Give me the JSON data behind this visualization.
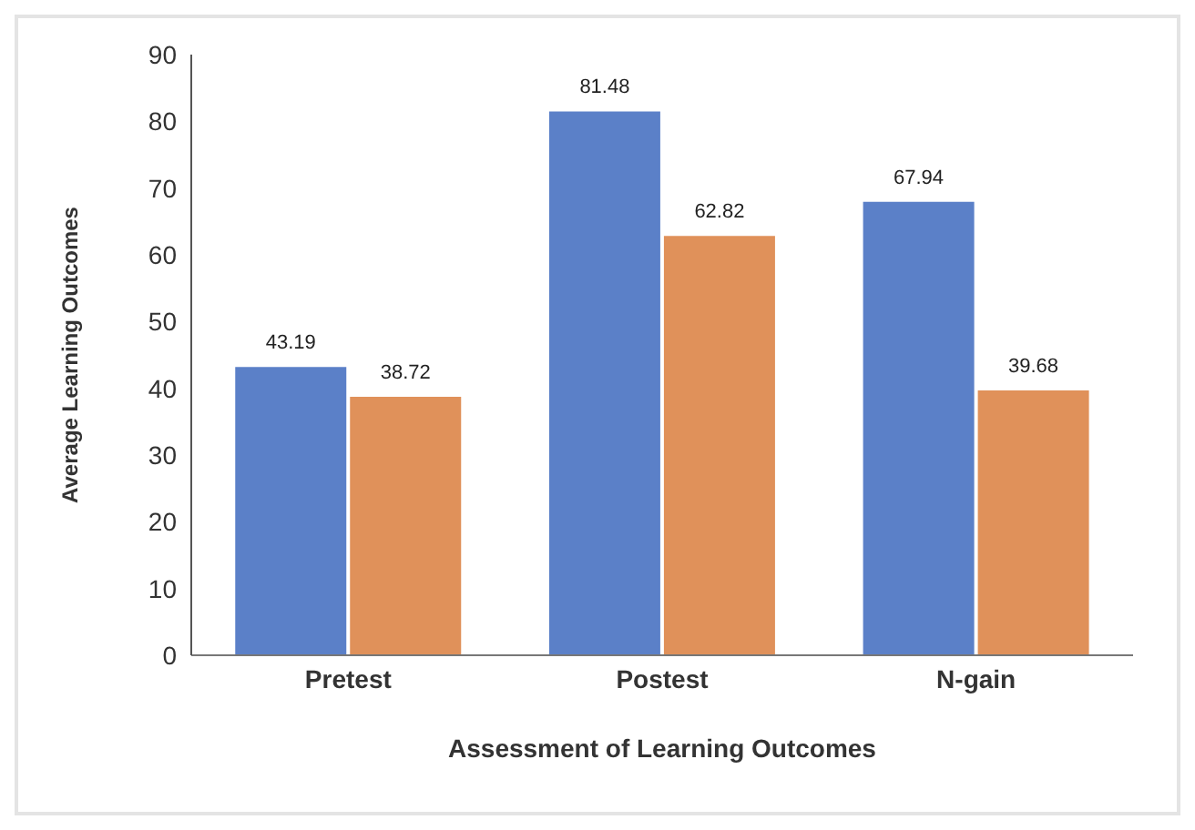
{
  "chart_data": {
    "type": "bar",
    "xlabel": "Assessment of Learning Outcomes",
    "ylabel": "Average Learning Outcomes",
    "categories": [
      "Pretest",
      "Postest",
      "N-gain"
    ],
    "series": [
      {
        "color": "#5b80c8",
        "values": [
          43.19,
          81.48,
          67.94
        ]
      },
      {
        "color": "#e0915a",
        "values": [
          38.72,
          62.82,
          39.68
        ]
      }
    ],
    "ylim": [
      0,
      90
    ],
    "yticks": [
      0,
      10,
      20,
      30,
      40,
      50,
      60,
      70,
      80,
      90
    ],
    "data_labels": true
  }
}
